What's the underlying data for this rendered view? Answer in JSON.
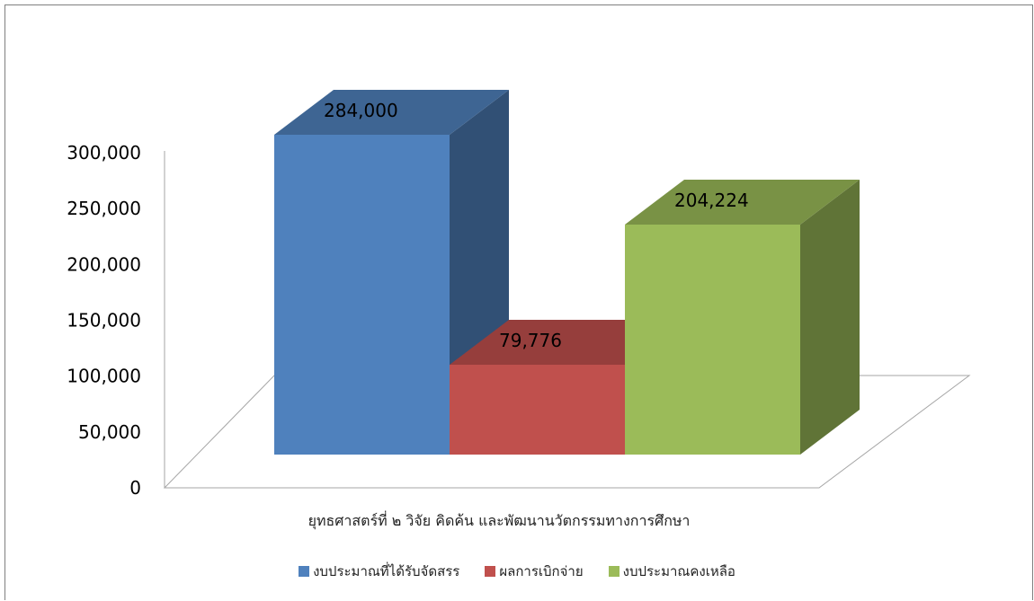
{
  "chart_data": {
    "type": "bar",
    "categories": [
      "ยุทธศาสตร์ที่ ๒ วิจัย คิดค้น และพัฒนานวัตกรรมทางการศึกษา"
    ],
    "series": [
      {
        "name": "งบประมาณที่ได้รับจัดสรร",
        "values": [
          284000
        ],
        "label": "284,000",
        "color": "#4f81bd"
      },
      {
        "name": "ผลการเบิกจ่าย",
        "values": [
          79776
        ],
        "label": "79,776",
        "color": "#c0504d"
      },
      {
        "name": "งบประมาณคงเหลือ",
        "values": [
          204224
        ],
        "label": "204,224",
        "color": "#9bbb59"
      }
    ],
    "yticks": [
      "0",
      "50,000",
      "100,000",
      "150,000",
      "200,000",
      "250,000",
      "300,000"
    ],
    "ylim": [
      0,
      300000
    ],
    "grid": false,
    "legend_position": "bottom",
    "style": "3d-column"
  }
}
